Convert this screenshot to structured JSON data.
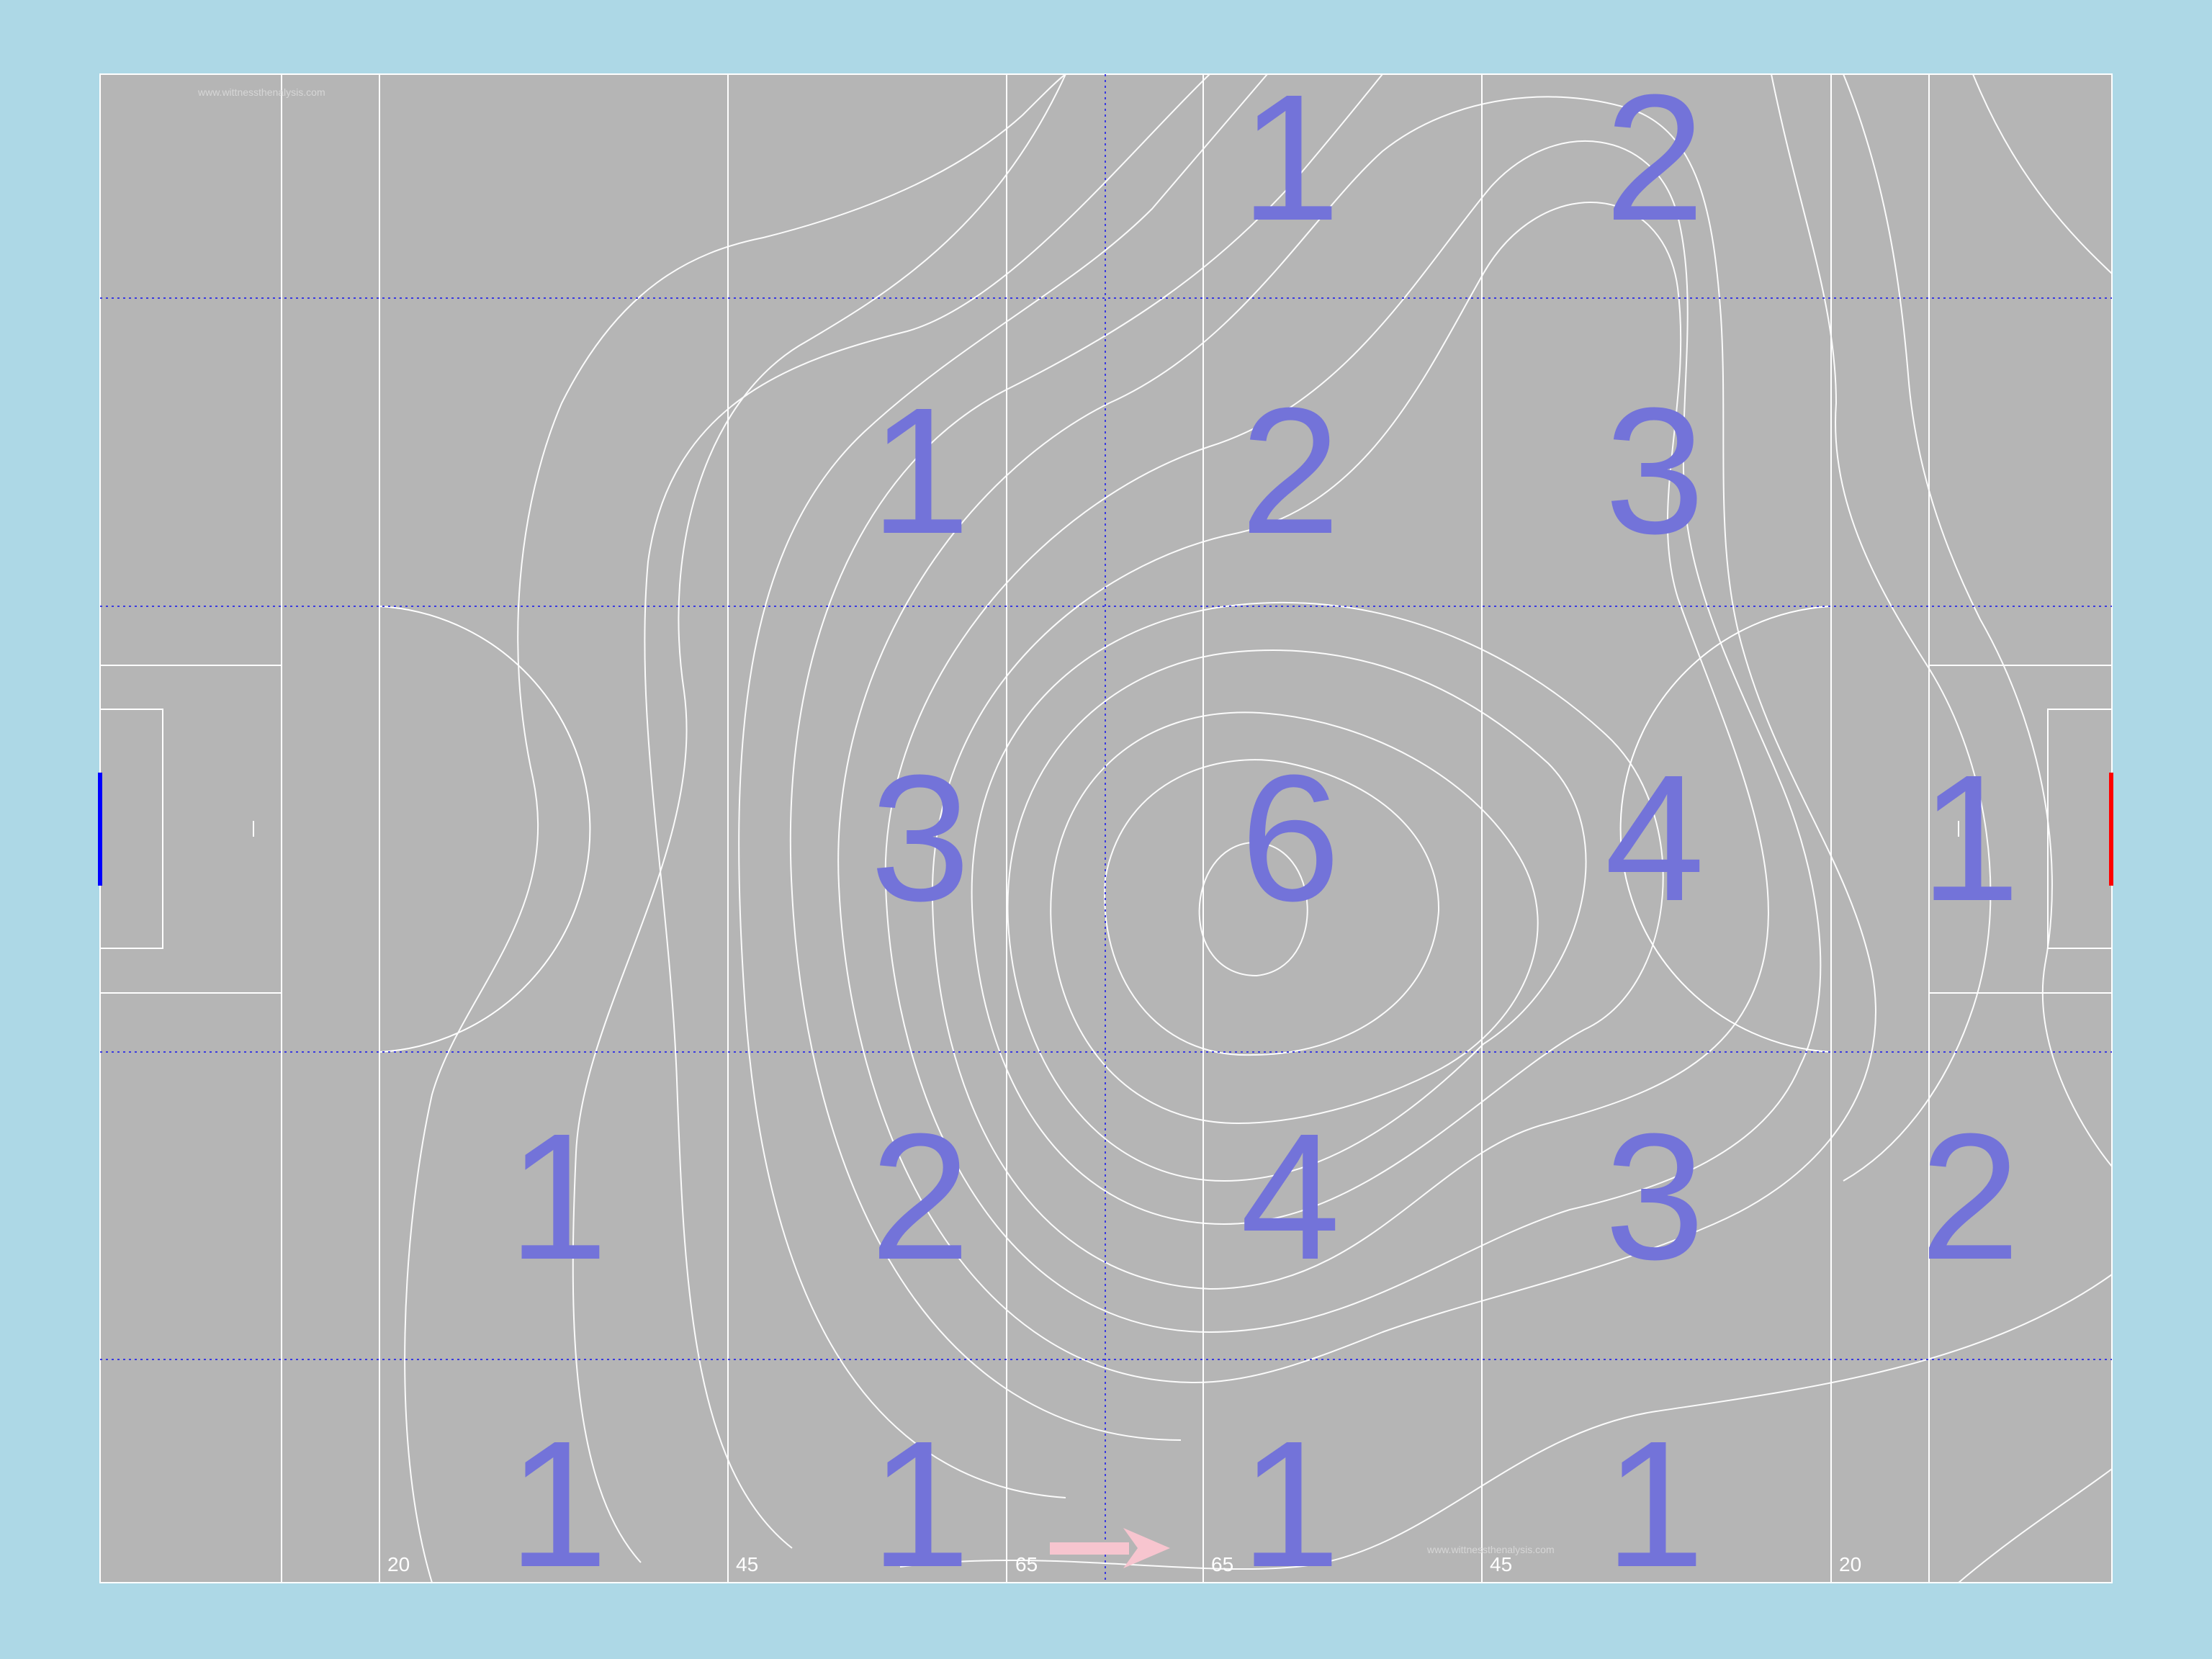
{
  "pitch": {
    "colors": {
      "background": "#add8e6",
      "pitch": "#b5b5b5",
      "lines": "#ffffff",
      "grid": "#3a3ae0",
      "zone_number": "#7373d9",
      "left_goal": "#0000ff",
      "right_goal": "#ff0000",
      "arrow": "#f7c5cf"
    },
    "watermarks": [
      "www.wittnessthenalysis.com",
      "www.wittnessthenalysis.com"
    ],
    "distance_labels": [
      "20",
      "45",
      "65",
      "65",
      "45",
      "20"
    ],
    "direction_icon": "arrow-right-icon"
  },
  "chart_data": {
    "type": "heatmap",
    "rows": 5,
    "cols": 5,
    "zones": [
      {
        "row": 0,
        "col": 2,
        "value": "1"
      },
      {
        "row": 0,
        "col": 3,
        "value": "2"
      },
      {
        "row": 1,
        "col": 1,
        "value": "1"
      },
      {
        "row": 1,
        "col": 2,
        "value": "2"
      },
      {
        "row": 1,
        "col": 3,
        "value": "3"
      },
      {
        "row": 2,
        "col": 1,
        "value": "3"
      },
      {
        "row": 2,
        "col": 2,
        "value": "6"
      },
      {
        "row": 2,
        "col": 3,
        "value": "4"
      },
      {
        "row": 2,
        "col": 4,
        "value": "1"
      },
      {
        "row": 3,
        "col": 0,
        "value": "1"
      },
      {
        "row": 3,
        "col": 1,
        "value": "2"
      },
      {
        "row": 3,
        "col": 2,
        "value": "4"
      },
      {
        "row": 3,
        "col": 3,
        "value": "3"
      },
      {
        "row": 3,
        "col": 4,
        "value": "2"
      },
      {
        "row": 4,
        "col": 0,
        "value": "1"
      },
      {
        "row": 4,
        "col": 1,
        "value": "1"
      },
      {
        "row": 4,
        "col": 2,
        "value": "1"
      },
      {
        "row": 4,
        "col": 3,
        "value": "1"
      }
    ]
  }
}
